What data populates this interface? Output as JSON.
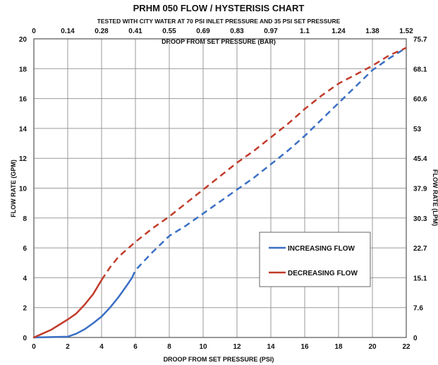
{
  "chart_data": {
    "type": "line",
    "title": "PRHM 050 FLOW / HYSTERISIS CHART",
    "subtitle": "TESTED WITH CITY WATER AT 70 PSI INLET PRESSURE AND 35 PSI SET PRESSURE",
    "xlabel": "DROOP FROM SET PRESSURE (PSI)",
    "ylabel": "FLOW RATE (GPM)",
    "x2label": "DROOP FROM SET PRESSURE (BAR)",
    "y2label": "FLOW RATE (LPM)",
    "xlim": [
      0,
      22
    ],
    "ylim": [
      0,
      20
    ],
    "x_ticks": [
      "0",
      "2",
      "4",
      "6",
      "8",
      "10",
      "12",
      "14",
      "16",
      "18",
      "20",
      "22"
    ],
    "y_ticks": [
      "0",
      "2",
      "4",
      "6",
      "8",
      "10",
      "12",
      "14",
      "16",
      "18",
      "20"
    ],
    "x2_ticks": [
      "0",
      "0.14",
      "0.28",
      "0.41",
      "0.55",
      "0.69",
      "0.83",
      "0.97",
      "1.1",
      "1.24",
      "1.38",
      "1.52"
    ],
    "y2_ticks": [
      "0",
      "7.6",
      "15.1",
      "22.7",
      "30.3",
      "37.9",
      "45.4",
      "53",
      "60.6",
      "68.1",
      "75.7"
    ],
    "grid": true,
    "legend_position": "right",
    "series": [
      {
        "name": "INCREASING FLOW",
        "color": "#3a6fc4",
        "solid_until_x": 5.8,
        "points": [
          [
            0,
            0
          ],
          [
            2,
            0.05
          ],
          [
            2.5,
            0.25
          ],
          [
            3,
            0.55
          ],
          [
            3.5,
            0.95
          ],
          [
            4,
            1.4
          ],
          [
            4.5,
            2.0
          ],
          [
            5,
            2.7
          ],
          [
            5.5,
            3.5
          ],
          [
            5.8,
            4.0
          ],
          [
            6,
            4.5
          ],
          [
            7,
            5.7
          ],
          [
            8,
            6.8
          ],
          [
            9,
            7.5
          ],
          [
            10,
            8.3
          ],
          [
            11,
            9.1
          ],
          [
            12,
            9.9
          ],
          [
            13,
            10.7
          ],
          [
            14,
            11.6
          ],
          [
            15,
            12.5
          ],
          [
            16,
            13.5
          ],
          [
            17,
            14.6
          ],
          [
            18,
            15.7
          ],
          [
            19,
            16.8
          ],
          [
            20,
            17.9
          ],
          [
            21,
            18.7
          ],
          [
            22,
            19.4
          ]
        ]
      },
      {
        "name": "DECREASING FLOW",
        "color": "#c23b2a",
        "solid_until_x": 4.0,
        "points": [
          [
            0,
            0
          ],
          [
            0.5,
            0.25
          ],
          [
            1,
            0.5
          ],
          [
            1.5,
            0.85
          ],
          [
            2,
            1.2
          ],
          [
            2.5,
            1.6
          ],
          [
            3,
            2.2
          ],
          [
            3.5,
            2.9
          ],
          [
            4,
            3.85
          ],
          [
            4.5,
            4.7
          ],
          [
            5,
            5.4
          ],
          [
            6,
            6.4
          ],
          [
            7,
            7.3
          ],
          [
            8,
            8.1
          ],
          [
            9,
            9.0
          ],
          [
            10,
            9.9
          ],
          [
            11,
            10.8
          ],
          [
            12,
            11.7
          ],
          [
            13,
            12.5
          ],
          [
            14,
            13.4
          ],
          [
            15,
            14.3
          ],
          [
            16,
            15.3
          ],
          [
            17,
            16.2
          ],
          [
            18,
            17.0
          ],
          [
            19,
            17.6
          ],
          [
            20,
            18.2
          ],
          [
            21,
            18.9
          ],
          [
            22,
            19.4
          ]
        ]
      }
    ]
  }
}
